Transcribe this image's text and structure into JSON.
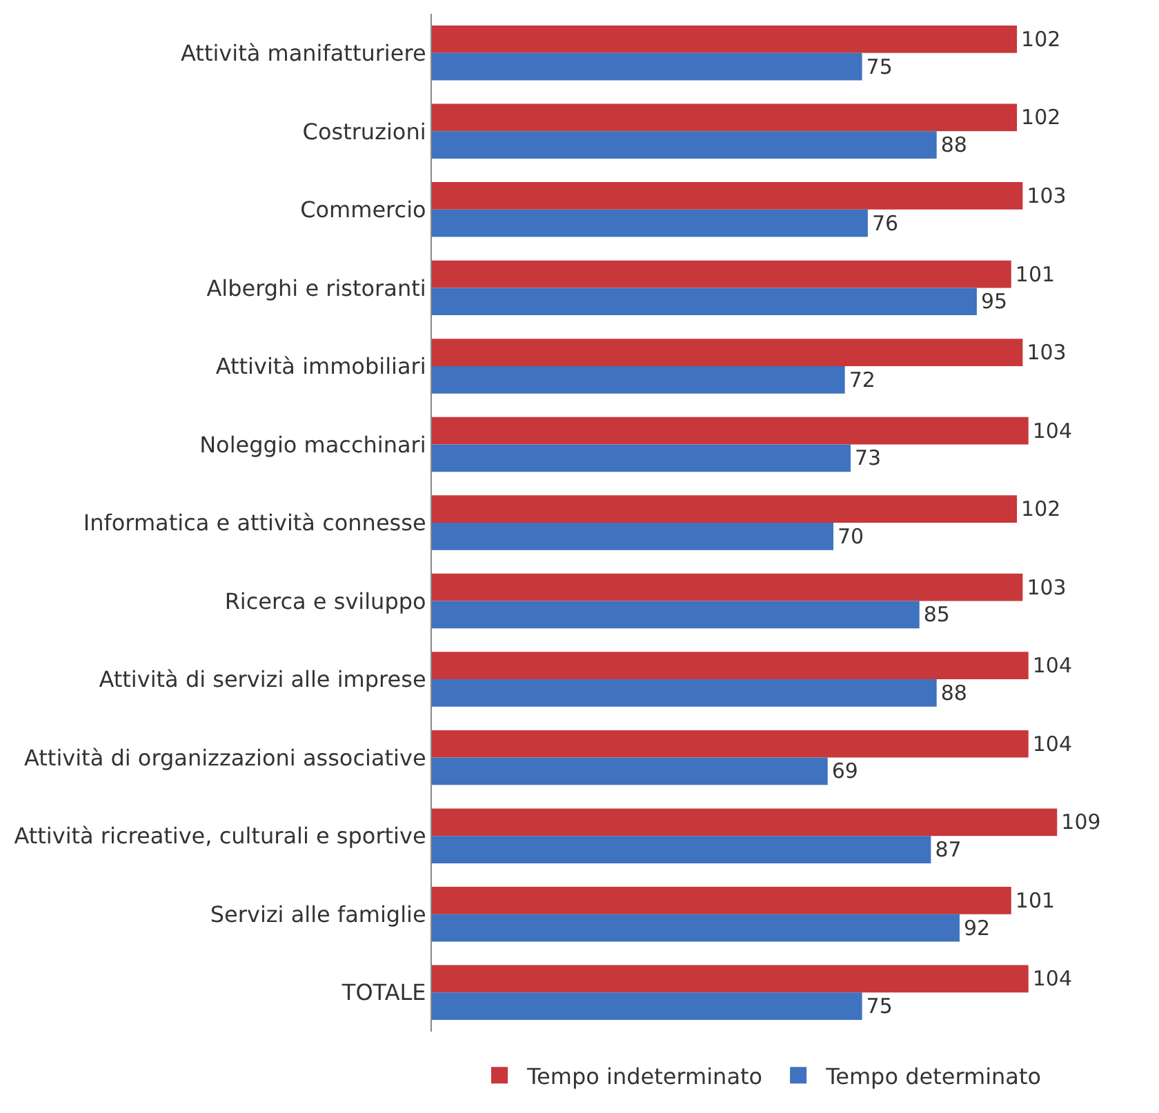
{
  "chart_data": {
    "type": "bar",
    "orientation": "horizontal",
    "categories": [
      "Attività manifatturiere",
      "Costruzioni",
      "Commercio",
      "Alberghi e ristoranti",
      "Attività immobiliari",
      "Noleggio macchinari",
      "Informatica e attività connesse",
      "Ricerca e sviluppo",
      "Attività di servizi alle imprese",
      "Attività di organizzazioni associative",
      "Attività ricreative, culturali e sportive",
      "Servizi alle famiglie",
      "TOTALE"
    ],
    "series": [
      {
        "name": "Tempo indeterminato",
        "color": "#c8373a",
        "values": [
          102,
          102,
          103,
          101,
          103,
          104,
          102,
          103,
          104,
          104,
          109,
          101,
          104
        ]
      },
      {
        "name": "Tempo determinato",
        "color": "#3f72bf",
        "values": [
          75,
          88,
          76,
          95,
          72,
          73,
          70,
          85,
          88,
          69,
          87,
          92,
          75
        ]
      }
    ],
    "data_labels": true,
    "legend": "bottom"
  }
}
